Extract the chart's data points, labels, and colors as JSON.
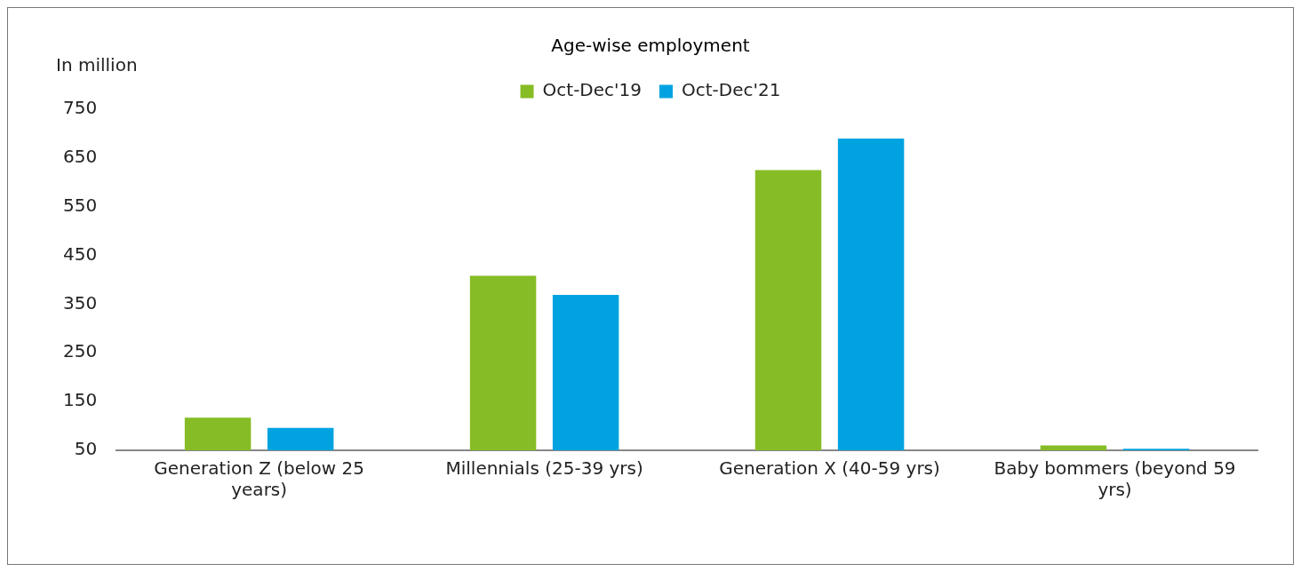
{
  "chart_data": {
    "type": "bar",
    "title": "Age-wise employment",
    "ylabel": "In million",
    "categories": [
      "Generation Z (below 25 years)",
      "Millennials (25-39 yrs)",
      "Generation X (40-59 yrs)",
      "Baby bommers (beyond 59 yrs)"
    ],
    "series": [
      {
        "name": "Oct-Dec'19",
        "color": "#86bc25",
        "values": [
          117,
          408,
          625,
          60
        ]
      },
      {
        "name": "Oct-Dec'21",
        "color": "#00a3e0",
        "values": [
          96,
          369,
          690,
          53
        ]
      }
    ],
    "ylim": [
      50,
      750
    ],
    "yticks": [
      50,
      150,
      250,
      350,
      450,
      550,
      650,
      750
    ],
    "grid": false,
    "legend": "top"
  }
}
